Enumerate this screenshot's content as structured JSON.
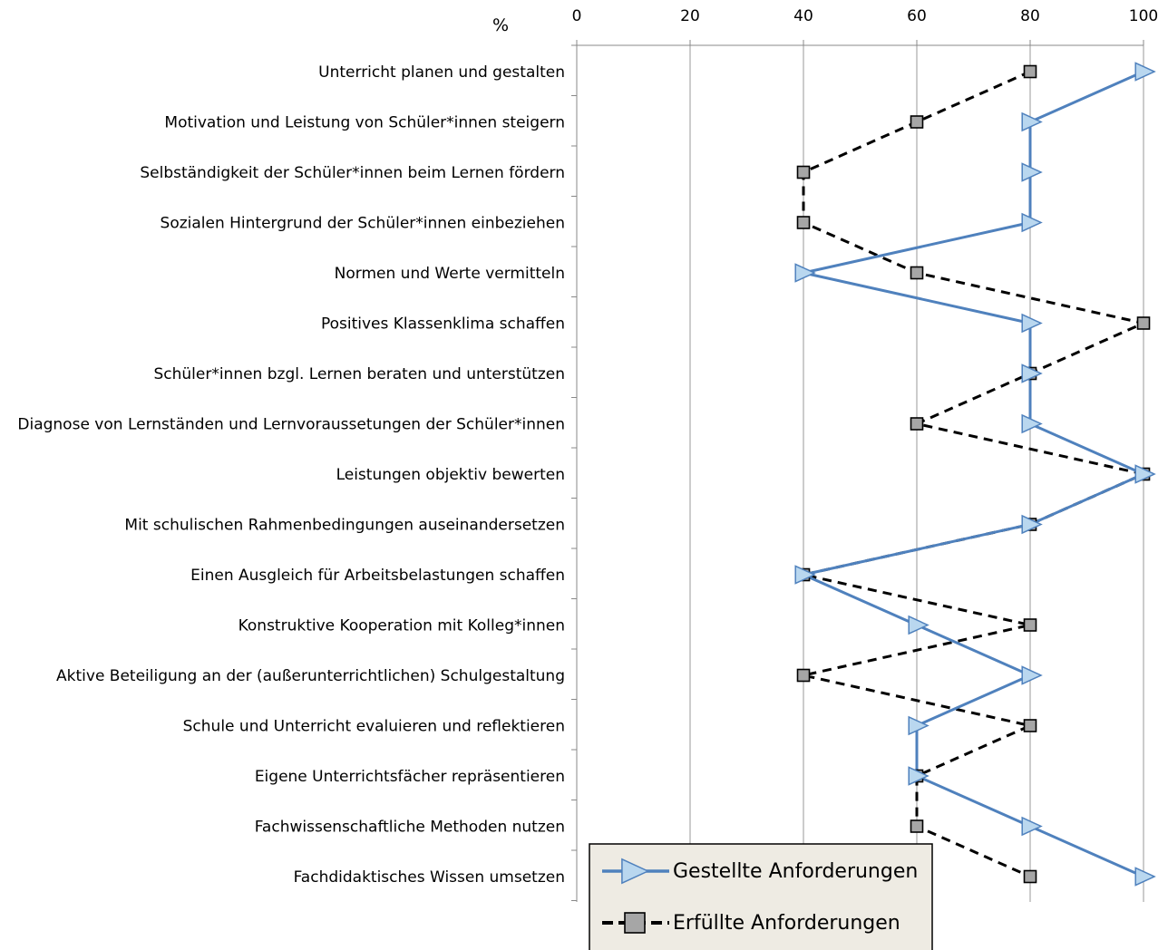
{
  "chart_data": {
    "type": "line",
    "orientation": "horizontal-categories",
    "unit_label": "%",
    "x_ticks": [
      "0",
      "20",
      "40",
      "60",
      "80",
      "100"
    ],
    "xlim": [
      0,
      100
    ],
    "grid": "vertical",
    "legend_position": "bottom-left",
    "categories": [
      "Unterricht planen und gestalten",
      "Motivation und Leistung von Schüler*innen steigern",
      "Selbständigkeit der Schüler*innen beim Lernen fördern",
      "Sozialen Hintergrund der Schüler*innen einbeziehen",
      "Normen und Werte vermitteln",
      "Positives Klassenklima schaffen",
      "Schüler*innen bzgl. Lernen beraten und unterstützen",
      "Diagnose von Lernständen und Lernvoraussetungen der Schüler*innen",
      "Leistungen objektiv bewerten",
      "Mit schulischen Rahmenbedingungen auseinandersetzen",
      "Einen Ausgleich für Arbeitsbelastungen schaffen",
      "Konstruktive Kooperation mit Kolleg*innen",
      "Aktive Beteiligung an der (außerunterrichtlichen)  Schulgestaltung",
      "Schule und Unterricht evaluieren und reflektieren",
      "Eigene Unterrichtsfächer repräsentieren",
      "Fachwissenschaftliche Methoden nutzen",
      "Fachdidaktisches Wissen umsetzen"
    ],
    "series": [
      {
        "name": "Gestellte Anforderungen",
        "color": "#4f81bd",
        "marker_fill": "#b9d7ef",
        "marker": "triangle-right",
        "line": "solid",
        "values": [
          100,
          80,
          80,
          80,
          40,
          80,
          80,
          80,
          100,
          80,
          40,
          60,
          80,
          60,
          60,
          80,
          100
        ]
      },
      {
        "name": "Erfüllte Anforderungen",
        "color": "#000000",
        "marker_fill": "#a6a6a6",
        "marker": "square",
        "line": "dashed",
        "values": [
          80,
          60,
          40,
          40,
          60,
          100,
          80,
          60,
          100,
          80,
          40,
          80,
          40,
          80,
          60,
          60,
          80
        ]
      }
    ]
  }
}
